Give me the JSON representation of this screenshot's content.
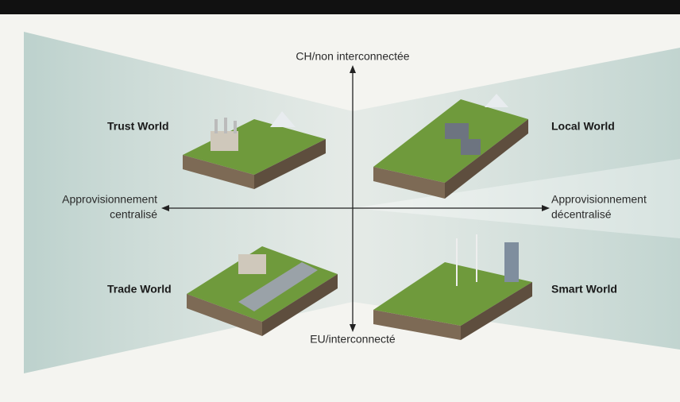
{
  "axes": {
    "top": "CH/non interconnectée",
    "bottom": "EU/interconnecté",
    "left": [
      "Approvisionnement",
      "centralisé"
    ],
    "right": [
      "Approvisionnement",
      "décentralisé"
    ]
  },
  "quadrants": [
    {
      "label": "Trust World"
    },
    {
      "label": "Local World"
    },
    {
      "label": "Trade World"
    },
    {
      "label": "Smart World"
    }
  ]
}
